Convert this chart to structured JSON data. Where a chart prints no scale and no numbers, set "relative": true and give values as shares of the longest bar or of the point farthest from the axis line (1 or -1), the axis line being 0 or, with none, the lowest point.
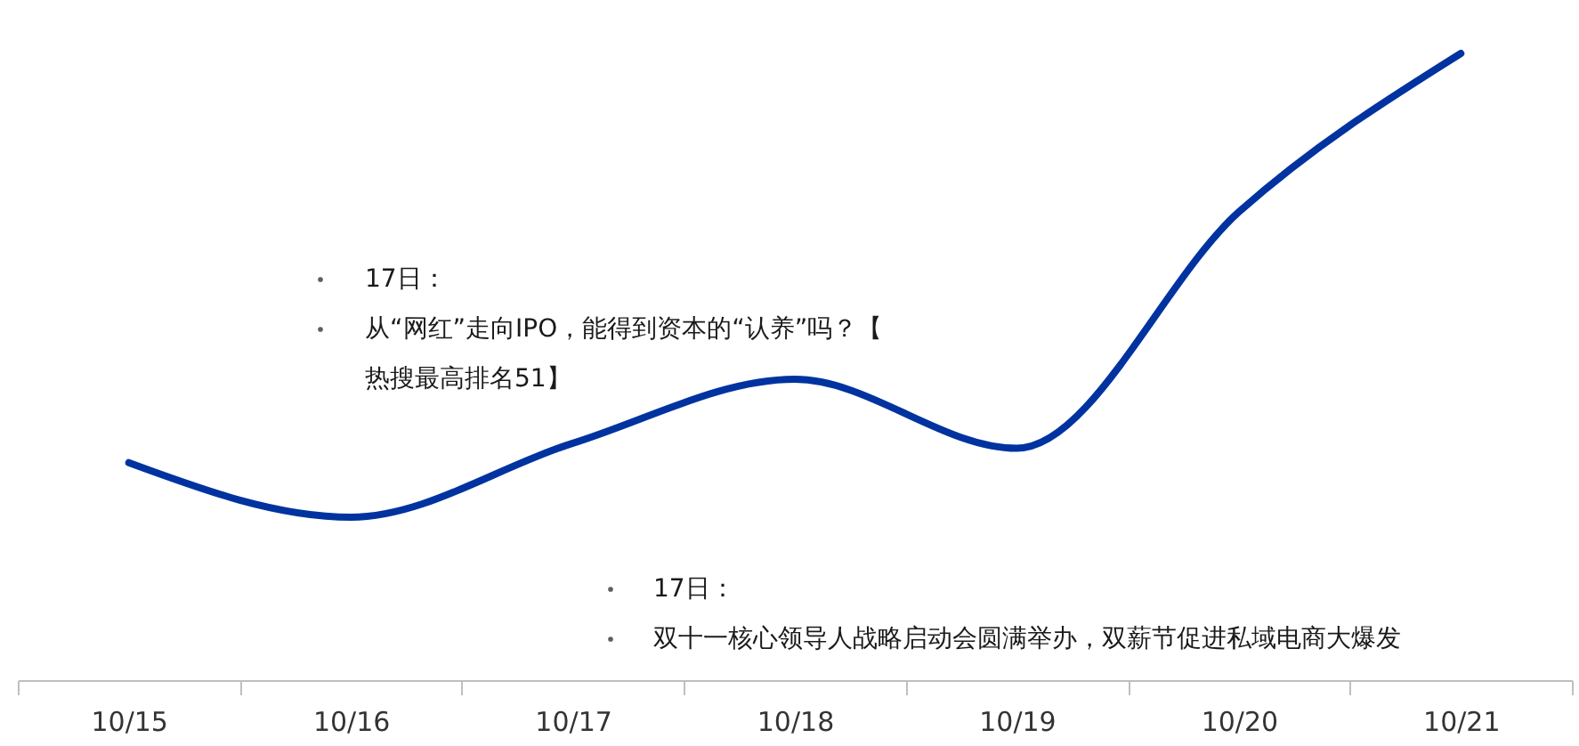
{
  "chart_data": {
    "type": "line",
    "relative": true,
    "categories": [
      "10/15",
      "10/16",
      "10/17",
      "10/18",
      "10/19",
      "10/20",
      "10/21"
    ],
    "series": [
      {
        "color": "#0033a0",
        "values": [
          0.347,
          0.26,
          0.378,
          0.48,
          0.37,
          0.747,
          1
        ]
      }
    ],
    "annotations": [
      "17日：",
      "从“网红”走向IPO，能得到资本的“认养”吗？【热搜最高排名51】",
      "17日：",
      "双十一核心领导人战略启动会圆满举办，双薪节促进私域电商大爆发"
    ],
    "grid": false,
    "legend": false,
    "marker": "none",
    "line_style": "solid"
  }
}
